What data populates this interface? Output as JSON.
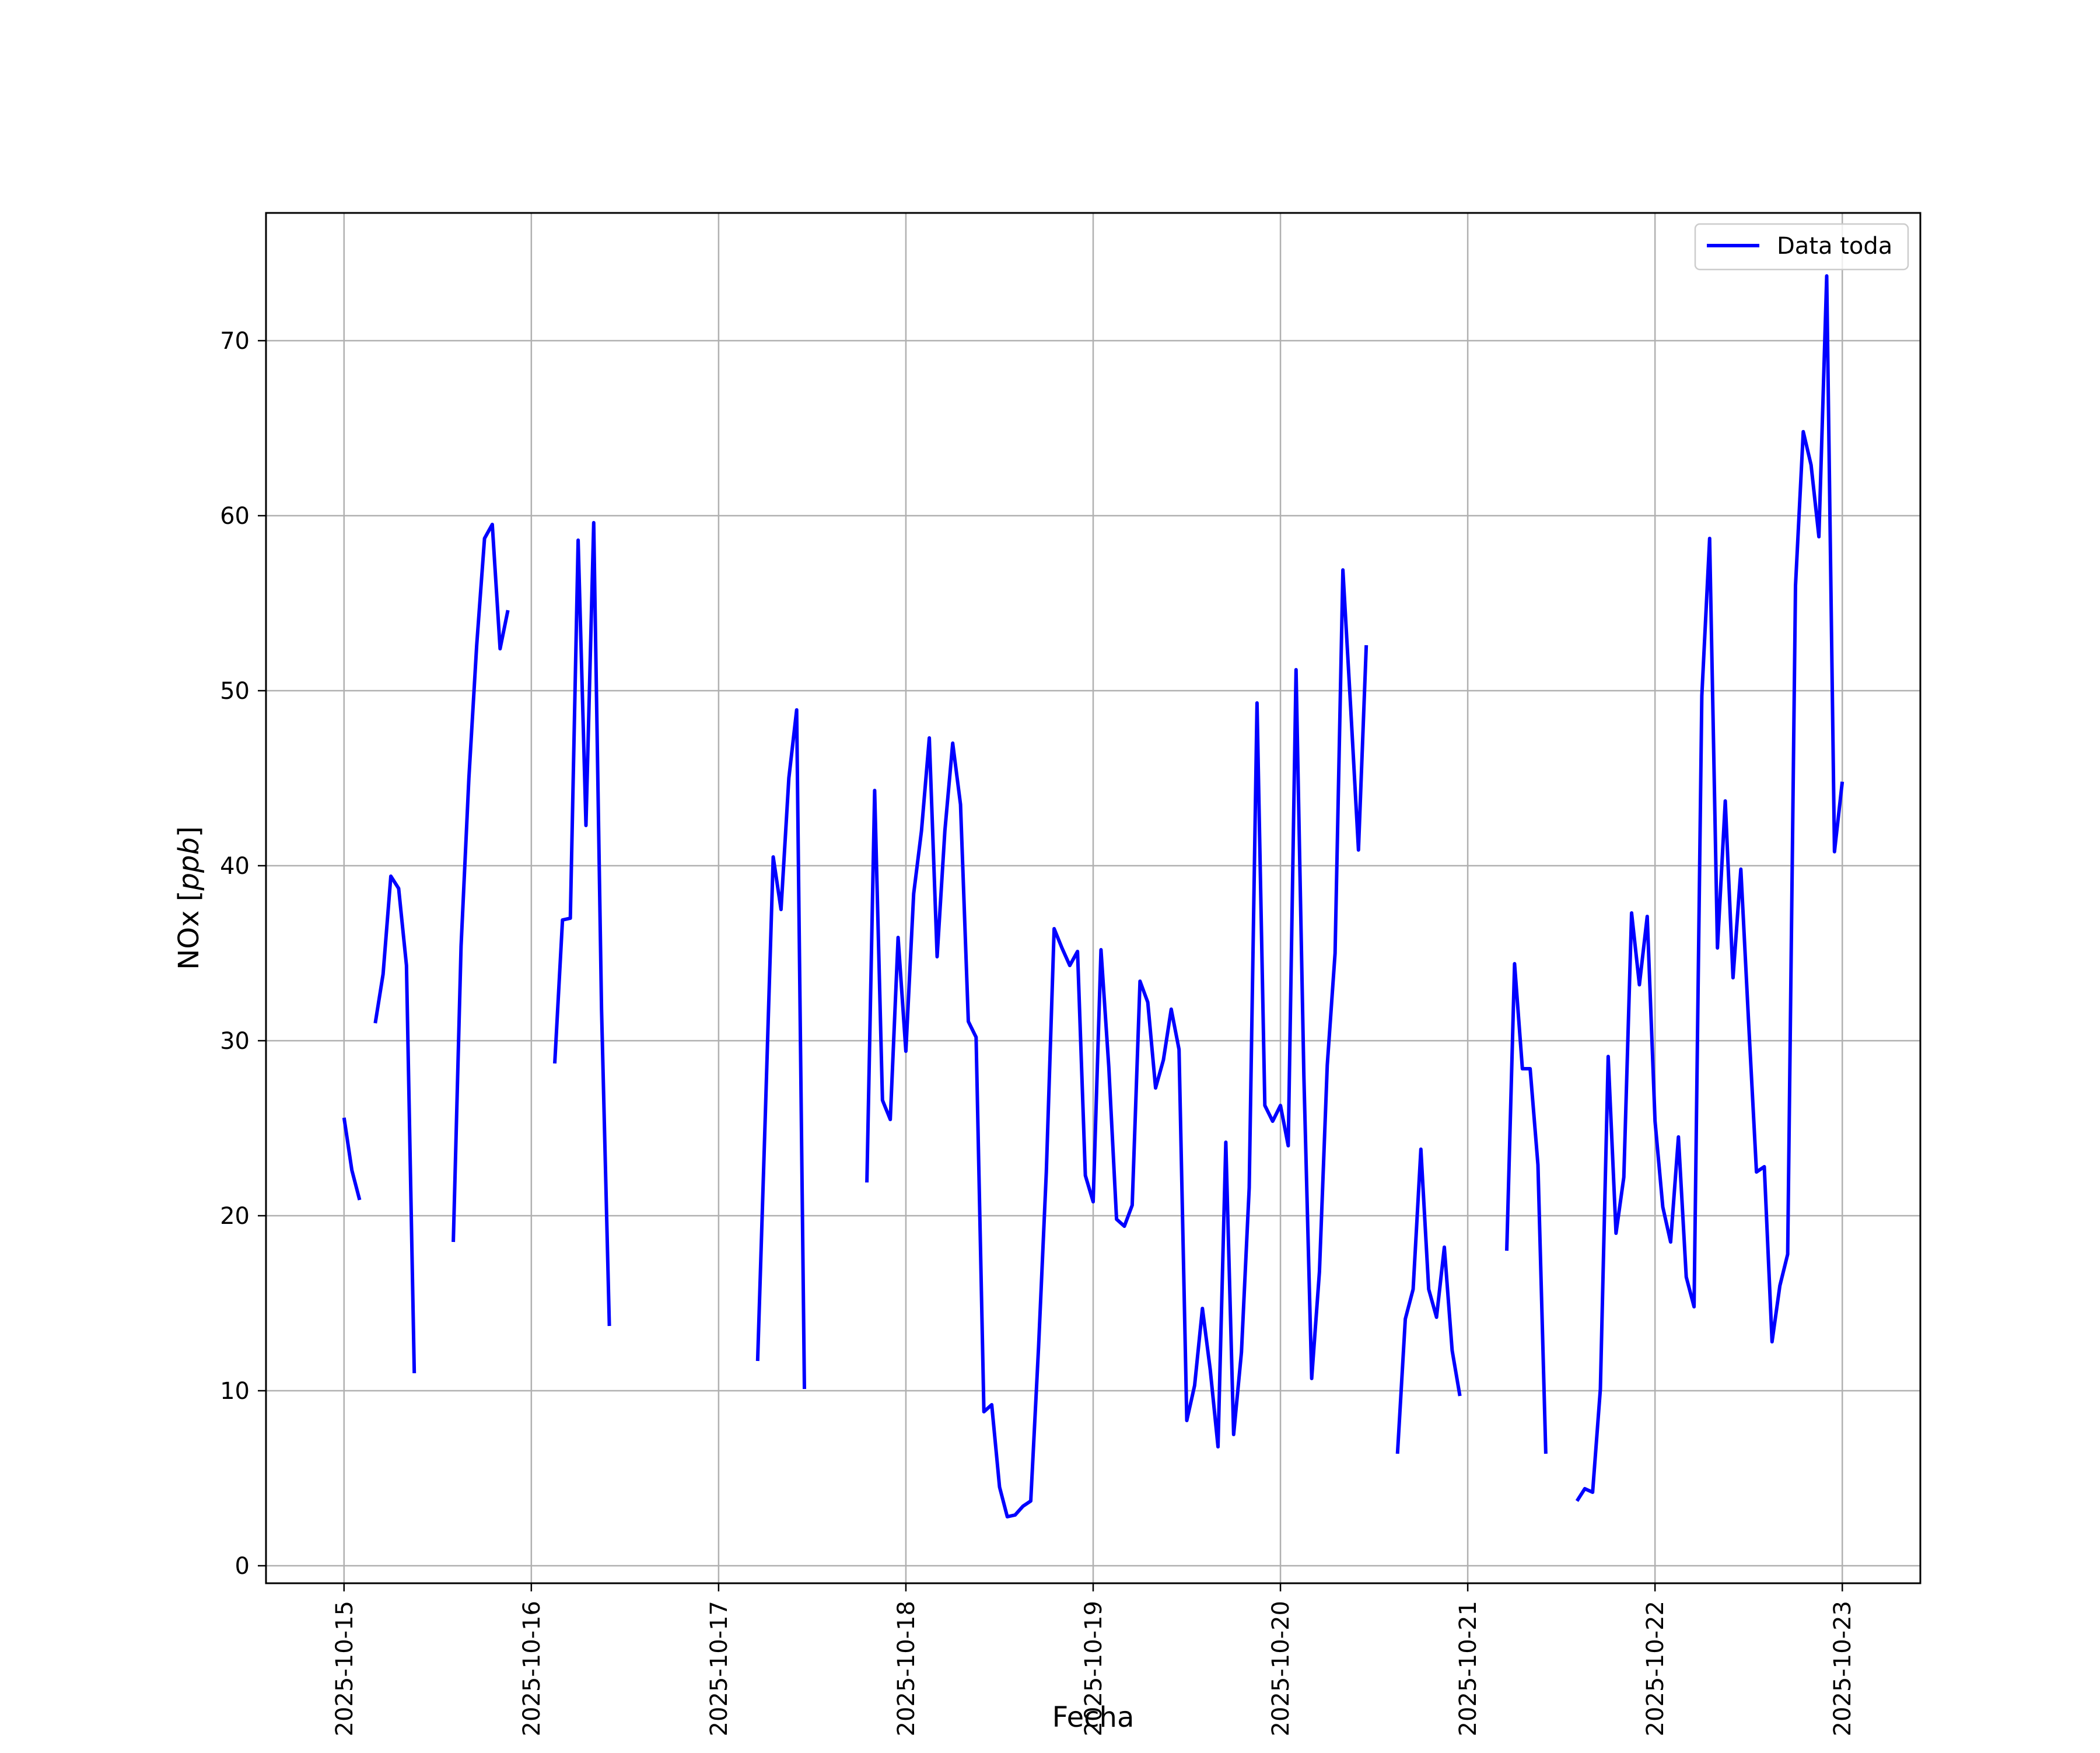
{
  "chart_data": {
    "type": "line",
    "title": "",
    "xlabel": "Fecha",
    "ylabel_text": "NOx [",
    "ylabel_unit": "ppb",
    "ylabel_close": "]",
    "x_ticks": [
      "2025-10-15",
      "2025-10-16",
      "2025-10-17",
      "2025-10-18",
      "2025-10-19",
      "2025-10-20",
      "2025-10-21",
      "2025-10-22",
      "2025-10-23"
    ],
    "y_ticks": [
      0,
      10,
      20,
      30,
      40,
      50,
      60,
      70
    ],
    "xlim": [
      "2025-10-14 14:00",
      "2025-10-23 10:00"
    ],
    "ylim": [
      -1.0,
      77.3
    ],
    "grid": true,
    "legend_position": "top-right",
    "colors": {
      "series": "#0000ff",
      "grid": "#b0b0b0",
      "axes": "#000000"
    },
    "series": [
      {
        "name": "Data toda",
        "segments": [
          [
            [
              "2025-10-15 00:00",
              25.6
            ],
            [
              "2025-10-15 01:00",
              22.6
            ],
            [
              "2025-10-15 02:00",
              20.9
            ]
          ],
          [
            [
              "2025-10-15 04:00",
              31.0
            ],
            [
              "2025-10-15 05:00",
              33.8
            ],
            [
              "2025-10-15 06:00",
              39.4
            ],
            [
              "2025-10-15 07:00",
              38.7
            ],
            [
              "2025-10-15 08:00",
              34.3
            ],
            [
              "2025-10-15 09:00",
              11.0
            ]
          ],
          [
            [
              "2025-10-15 14:00",
              18.5
            ],
            [
              "2025-10-15 15:00",
              35.4
            ],
            [
              "2025-10-15 16:00",
              45.0
            ],
            [
              "2025-10-15 17:00",
              52.6
            ],
            [
              "2025-10-15 18:00",
              58.7
            ],
            [
              "2025-10-15 19:00",
              59.5
            ],
            [
              "2025-10-15 20:00",
              52.4
            ],
            [
              "2025-10-15 21:00",
              54.6
            ]
          ],
          [
            [
              "2025-10-16 03:00",
              28.7
            ],
            [
              "2025-10-16 04:00",
              36.9
            ],
            [
              "2025-10-16 05:00",
              37.0
            ],
            [
              "2025-10-16 06:00",
              58.6
            ],
            [
              "2025-10-16 07:00",
              42.3
            ],
            [
              "2025-10-16 08:00",
              59.6
            ],
            [
              "2025-10-16 09:00",
              31.8
            ],
            [
              "2025-10-16 10:00",
              13.7
            ]
          ],
          [
            [
              "2025-10-17 05:00",
              11.7
            ],
            [
              "2025-10-17 06:00",
              26.0
            ],
            [
              "2025-10-17 07:00",
              40.5
            ],
            [
              "2025-10-17 08:00",
              37.5
            ],
            [
              "2025-10-17 09:00",
              45.0
            ],
            [
              "2025-10-17 10:00",
              48.9
            ],
            [
              "2025-10-17 11:00",
              10.1
            ]
          ],
          [
            [
              "2025-10-17 19:00",
              21.9
            ],
            [
              "2025-10-17 20:00",
              44.3
            ],
            [
              "2025-10-17 21:00",
              26.6
            ],
            [
              "2025-10-17 22:00",
              25.5
            ],
            [
              "2025-10-17 23:00",
              35.9
            ],
            [
              "2025-10-18 00:00",
              29.4
            ],
            [
              "2025-10-18 01:00",
              38.4
            ],
            [
              "2025-10-18 02:00",
              42.0
            ],
            [
              "2025-10-18 03:00",
              47.3
            ],
            [
              "2025-10-18 04:00",
              34.8
            ],
            [
              "2025-10-18 05:00",
              42.0
            ],
            [
              "2025-10-18 06:00",
              47.0
            ],
            [
              "2025-10-18 07:00",
              43.5
            ],
            [
              "2025-10-18 08:00",
              31.1
            ],
            [
              "2025-10-18 09:00",
              30.2
            ],
            [
              "2025-10-18 10:00",
              8.8
            ],
            [
              "2025-10-18 11:00",
              9.2
            ],
            [
              "2025-10-18 12:00",
              4.5
            ],
            [
              "2025-10-18 13:00",
              2.8
            ],
            [
              "2025-10-18 14:00",
              2.9
            ],
            [
              "2025-10-18 15:00",
              3.4
            ],
            [
              "2025-10-18 16:00",
              3.7
            ],
            [
              "2025-10-18 17:00",
              12.5
            ],
            [
              "2025-10-18 18:00",
              22.5
            ],
            [
              "2025-10-18 19:00",
              36.4
            ],
            [
              "2025-10-18 20:00",
              35.3
            ],
            [
              "2025-10-18 21:00",
              34.3
            ],
            [
              "2025-10-18 22:00",
              35.1
            ],
            [
              "2025-10-18 23:00",
              22.3
            ],
            [
              "2025-10-19 00:00",
              20.8
            ],
            [
              "2025-10-19 01:00",
              35.2
            ],
            [
              "2025-10-19 02:00",
              28.5
            ],
            [
              "2025-10-19 03:00",
              19.8
            ],
            [
              "2025-10-19 04:00",
              19.4
            ],
            [
              "2025-10-19 05:00",
              20.6
            ],
            [
              "2025-10-19 06:00",
              33.4
            ],
            [
              "2025-10-19 07:00",
              32.2
            ],
            [
              "2025-10-19 08:00",
              27.3
            ],
            [
              "2025-10-19 09:00",
              28.9
            ],
            [
              "2025-10-19 10:00",
              31.8
            ],
            [
              "2025-10-19 11:00",
              29.5
            ],
            [
              "2025-10-19 12:00",
              8.3
            ],
            [
              "2025-10-19 13:00",
              10.3
            ],
            [
              "2025-10-19 14:00",
              14.7
            ],
            [
              "2025-10-19 15:00",
              11.2
            ],
            [
              "2025-10-19 16:00",
              6.8
            ],
            [
              "2025-10-19 17:00",
              24.2
            ],
            [
              "2025-10-19 18:00",
              7.5
            ],
            [
              "2025-10-19 19:00",
              12.2
            ],
            [
              "2025-10-19 20:00",
              21.6
            ],
            [
              "2025-10-19 21:00",
              49.3
            ],
            [
              "2025-10-19 22:00",
              26.3
            ],
            [
              "2025-10-19 23:00",
              25.4
            ],
            [
              "2025-10-20 00:00",
              26.3
            ],
            [
              "2025-10-20 01:00",
              24.0
            ],
            [
              "2025-10-20 02:00",
              51.2
            ],
            [
              "2025-10-20 03:00",
              28.0
            ],
            [
              "2025-10-20 04:00",
              10.7
            ],
            [
              "2025-10-20 05:00",
              16.8
            ],
            [
              "2025-10-20 06:00",
              28.6
            ],
            [
              "2025-10-20 07:00",
              35.0
            ],
            [
              "2025-10-20 08:00",
              56.9
            ],
            [
              "2025-10-20 09:00",
              49.0
            ],
            [
              "2025-10-20 10:00",
              40.9
            ],
            [
              "2025-10-20 11:00",
              52.6
            ]
          ],
          [
            [
              "2025-10-20 15:00",
              6.4
            ],
            [
              "2025-10-20 16:00",
              14.1
            ],
            [
              "2025-10-20 17:00",
              15.8
            ],
            [
              "2025-10-20 18:00",
              23.8
            ],
            [
              "2025-10-20 19:00",
              15.8
            ],
            [
              "2025-10-20 20:00",
              14.2
            ],
            [
              "2025-10-20 21:00",
              18.2
            ],
            [
              "2025-10-20 22:00",
              12.3
            ],
            [
              "2025-10-20 23:00",
              9.7
            ]
          ],
          [
            [
              "2025-10-21 05:00",
              18.0
            ],
            [
              "2025-10-21 06:00",
              34.4
            ],
            [
              "2025-10-21 07:00",
              28.4
            ],
            [
              "2025-10-21 08:00",
              28.4
            ],
            [
              "2025-10-21 09:00",
              22.9
            ],
            [
              "2025-10-21 10:00",
              6.4
            ]
          ],
          [
            [
              "2025-10-21 14:00",
              3.7
            ],
            [
              "2025-10-21 15:00",
              4.4
            ],
            [
              "2025-10-21 16:00",
              4.2
            ],
            [
              "2025-10-21 17:00",
              10.1
            ],
            [
              "2025-10-21 18:00",
              29.1
            ],
            [
              "2025-10-21 19:00",
              19.0
            ],
            [
              "2025-10-21 20:00",
              22.2
            ],
            [
              "2025-10-21 21:00",
              37.3
            ],
            [
              "2025-10-21 22:00",
              33.2
            ],
            [
              "2025-10-21 23:00",
              37.1
            ],
            [
              "2025-10-22 00:00",
              25.4
            ],
            [
              "2025-10-22 01:00",
              20.5
            ],
            [
              "2025-10-22 02:00",
              18.5
            ],
            [
              "2025-10-22 03:00",
              24.5
            ],
            [
              "2025-10-22 04:00",
              16.5
            ],
            [
              "2025-10-22 05:00",
              14.8
            ],
            [
              "2025-10-22 06:00",
              49.7
            ],
            [
              "2025-10-22 07:00",
              58.7
            ],
            [
              "2025-10-22 08:00",
              35.3
            ],
            [
              "2025-10-22 09:00",
              43.7
            ],
            [
              "2025-10-22 10:00",
              33.6
            ],
            [
              "2025-10-22 11:00",
              39.8
            ],
            [
              "2025-10-22 12:00",
              31.0
            ],
            [
              "2025-10-22 13:00",
              22.5
            ],
            [
              "2025-10-22 14:00",
              22.8
            ],
            [
              "2025-10-22 15:00",
              12.8
            ],
            [
              "2025-10-22 16:00",
              16.0
            ],
            [
              "2025-10-22 17:00",
              17.8
            ],
            [
              "2025-10-22 18:00",
              56.0
            ],
            [
              "2025-10-22 19:00",
              64.8
            ],
            [
              "2025-10-22 20:00",
              62.9
            ],
            [
              "2025-10-22 21:00",
              58.8
            ],
            [
              "2025-10-22 22:00",
              73.7
            ],
            [
              "2025-10-22 23:00",
              40.8
            ],
            [
              "2025-10-23 00:00",
              44.8
            ]
          ]
        ]
      }
    ]
  }
}
